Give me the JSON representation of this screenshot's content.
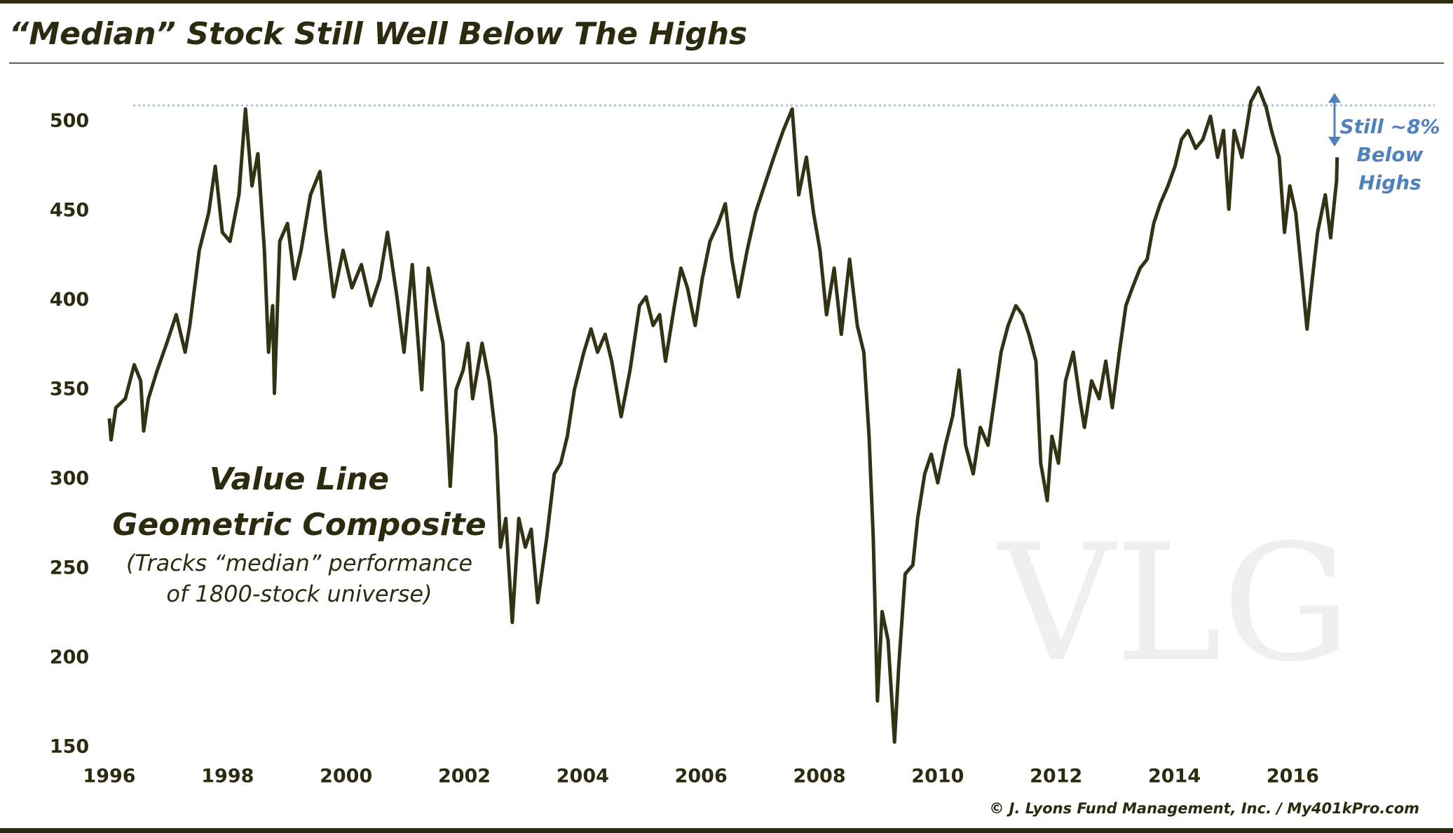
{
  "chart_data": {
    "type": "line",
    "title": "“Median” Stock Still Well Below The Highs",
    "inset_title": [
      "Value Line",
      "Geometric Composite"
    ],
    "inset_note": [
      "(Tracks “median” performance",
      "of 1800-stock universe)"
    ],
    "annotation": [
      "Still ~8%",
      "Below",
      "Highs"
    ],
    "watermark": "VLG",
    "source": "© J. Lyons Fund Management, Inc. / My401kPro.com",
    "color": "#323214",
    "reference_line": 509,
    "reference_color": "#a9c4e8",
    "annotation_color": "#4f81bd",
    "annotation_arrow": [
      516,
      486
    ],
    "xlim": [
      1996,
      2018.4
    ],
    "ylim": [
      150,
      526
    ],
    "xticks": [
      1996,
      1998,
      2000,
      2002,
      2004,
      2006,
      2008,
      2010,
      2012,
      2014,
      2016
    ],
    "yticks": [
      150,
      200,
      250,
      300,
      350,
      400,
      450,
      500
    ],
    "grid": false,
    "x": [
      1996,
      1996.03,
      1996.11,
      1996.27,
      1996.42,
      1996.53,
      1996.58,
      1996.66,
      1996.81,
      1996.97,
      1997.13,
      1997.28,
      1997.36,
      1997.52,
      1997.68,
      1997.79,
      1997.91,
      1998.04,
      1998.19,
      1998.3,
      1998.41,
      1998.51,
      1998.62,
      1998.69,
      1998.76,
      1998.79,
      1998.88,
      1999.01,
      1999.13,
      1999.24,
      1999.4,
      1999.56,
      1999.66,
      1999.79,
      1999.95,
      2000.1,
      2000.26,
      2000.42,
      2000.57,
      2000.7,
      2000.86,
      2000.98,
      2001.12,
      2001.28,
      2001.39,
      2001.51,
      2001.64,
      2001.76,
      2001.86,
      2001.98,
      2002.06,
      2002.14,
      2002.3,
      2002.42,
      2002.53,
      2002.61,
      2002.7,
      2002.81,
      2002.92,
      2003.03,
      2003.13,
      2003.24,
      2003.39,
      2003.52,
      2003.63,
      2003.74,
      2003.86,
      2004.02,
      2004.14,
      2004.25,
      2004.38,
      2004.49,
      2004.65,
      2004.8,
      2004.96,
      2005.07,
      2005.19,
      2005.3,
      2005.4,
      2005.55,
      2005.66,
      2005.77,
      2005.9,
      2006.02,
      2006.15,
      2006.29,
      2006.41,
      2006.52,
      2006.63,
      2006.78,
      2006.92,
      2007.07,
      2007.23,
      2007.39,
      2007.54,
      2007.65,
      2007.78,
      2007.9,
      2008.01,
      2008.12,
      2008.25,
      2008.37,
      2008.51,
      2008.64,
      2008.75,
      2008.84,
      2008.91,
      2008.98,
      2009.06,
      2009.16,
      2009.27,
      2009.34,
      2009.45,
      2009.58,
      2009.66,
      2009.78,
      2009.89,
      2010,
      2010.13,
      2010.25,
      2010.36,
      2010.47,
      2010.6,
      2010.72,
      2010.85,
      2010.96,
      2011.07,
      2011.19,
      2011.32,
      2011.43,
      2011.54,
      2011.66,
      2011.74,
      2011.85,
      2011.93,
      2012.04,
      2012.16,
      2012.29,
      2012.4,
      2012.48,
      2012.6,
      2012.73,
      2012.84,
      2012.95,
      2013.07,
      2013.18,
      2013.29,
      2013.42,
      2013.54,
      2013.65,
      2013.76,
      2013.89,
      2014.01,
      2014.12,
      2014.23,
      2014.36,
      2014.48,
      2014.61,
      2014.73,
      2014.83,
      2014.92,
      2015.01,
      2015.14,
      2015.29,
      2015.42,
      2015.55,
      2015.64,
      2015.77,
      2015.86,
      2015.95,
      2016.05,
      2016.16,
      2016.24,
      2016.33,
      2016.42,
      2016.55,
      2016.64,
      2016.74,
      2016.75
    ],
    "values": [
      334,
      322,
      340,
      345,
      364,
      355,
      327,
      345,
      361,
      376,
      392,
      371,
      386,
      428,
      449,
      475,
      438,
      433,
      459,
      507,
      464,
      482,
      428,
      371,
      397,
      348,
      433,
      443,
      412,
      428,
      459,
      472,
      438,
      402,
      428,
      407,
      420,
      397,
      412,
      438,
      402,
      371,
      420,
      350,
      418,
      397,
      376,
      296,
      350,
      361,
      376,
      345,
      376,
      355,
      324,
      262,
      278,
      220,
      278,
      262,
      272,
      231,
      267,
      303,
      309,
      324,
      350,
      371,
      384,
      371,
      381,
      366,
      335,
      361,
      397,
      402,
      386,
      392,
      366,
      397,
      418,
      407,
      386,
      412,
      433,
      443,
      454,
      423,
      402,
      428,
      449,
      464,
      480,
      495,
      507,
      459,
      480,
      449,
      428,
      392,
      418,
      381,
      423,
      386,
      371,
      324,
      267,
      176,
      226,
      210,
      153,
      195,
      247,
      252,
      278,
      303,
      314,
      298,
      319,
      335,
      361,
      319,
      303,
      329,
      319,
      345,
      371,
      386,
      397,
      392,
      381,
      366,
      309,
      288,
      324,
      309,
      355,
      371,
      345,
      329,
      355,
      345,
      366,
      340,
      371,
      397,
      407,
      418,
      423,
      443,
      454,
      464,
      475,
      490,
      495,
      485,
      490,
      503,
      480,
      495,
      451,
      495,
      480,
      511,
      519,
      508,
      495,
      480,
      438,
      464,
      449,
      412,
      384,
      412,
      438,
      459,
      435,
      467,
      480
    ]
  }
}
